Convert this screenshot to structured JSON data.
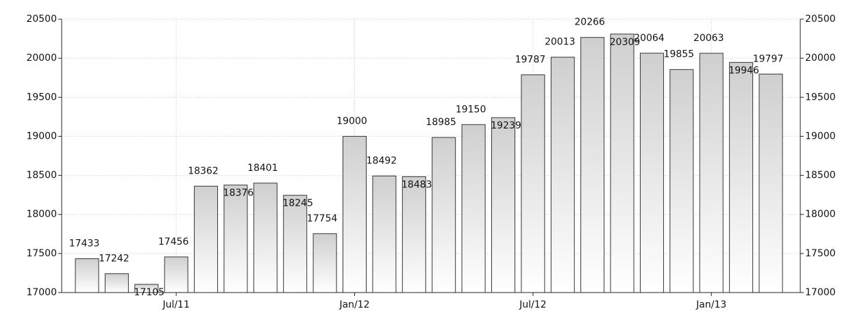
{
  "chart_data": {
    "type": "bar",
    "categories": [
      null,
      null,
      null,
      "Jul/11",
      null,
      null,
      null,
      null,
      null,
      "Jan/12",
      null,
      null,
      null,
      null,
      null,
      "Jul/12",
      null,
      null,
      null,
      null,
      null,
      "Jan/13",
      null,
      null
    ],
    "values": [
      17433,
      17242,
      17105,
      17456,
      18362,
      18376,
      18401,
      18245,
      17754,
      19000,
      18492,
      18483,
      18985,
      19150,
      19239,
      19787,
      20013,
      20266,
      20309,
      20064,
      19855,
      20063,
      19946,
      19797
    ],
    "ylim": [
      17000,
      20500
    ],
    "yticks": [
      17000,
      17500,
      18000,
      18500,
      19000,
      19500,
      20000,
      20500
    ],
    "y2lim": [
      17000,
      20500
    ],
    "y2ticks": [
      17000,
      17500,
      18000,
      18500,
      19000,
      19500,
      20000,
      20500
    ],
    "grid": true
  }
}
